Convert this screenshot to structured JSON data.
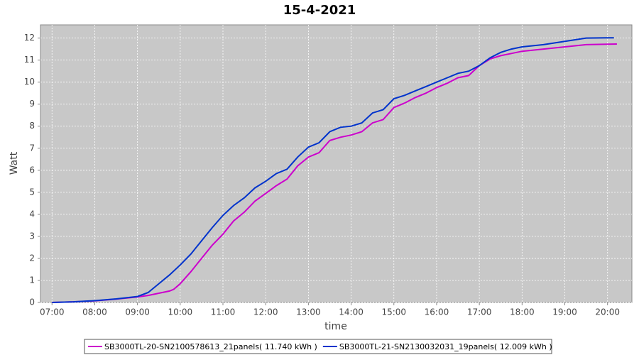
{
  "chart_data": {
    "type": "line",
    "title": "15-4-2021",
    "x_label": "time",
    "y_label": "Watt",
    "xlim": [
      6.73,
      20.57
    ],
    "xticks": [
      {
        "value": 7,
        "label": "07:00"
      },
      {
        "value": 8,
        "label": "08:00"
      },
      {
        "value": 9,
        "label": "09:00"
      },
      {
        "value": 10,
        "label": "10:00"
      },
      {
        "value": 11,
        "label": "11:00"
      },
      {
        "value": 12,
        "label": "12:00"
      },
      {
        "value": 13,
        "label": "13:00"
      },
      {
        "value": 14,
        "label": "14:00"
      },
      {
        "value": 15,
        "label": "15:00"
      },
      {
        "value": 16,
        "label": "16:00"
      },
      {
        "value": 17,
        "label": "17:00"
      },
      {
        "value": 18,
        "label": "18:00"
      },
      {
        "value": 19,
        "label": "19:00"
      },
      {
        "value": 20,
        "label": "20:00"
      }
    ],
    "ylim": [
      0,
      12.6
    ],
    "yticks": [
      0,
      1,
      2,
      3,
      4,
      5,
      6,
      7,
      8,
      9,
      10,
      11,
      12
    ],
    "grid": true,
    "series": [
      {
        "name": "SB3000TL-20-SN2100578613_21panels( 11.740 kWh )",
        "color": "#cc00cc",
        "x": [
          7,
          7.5,
          8,
          8.5,
          9,
          9.25,
          9.5,
          9.75,
          9.85,
          10,
          10.25,
          10.5,
          10.75,
          11,
          11.25,
          11.5,
          11.75,
          12,
          12.25,
          12.5,
          12.75,
          13,
          13.25,
          13.5,
          13.75,
          14,
          14.25,
          14.5,
          14.75,
          15,
          15.25,
          15.5,
          15.75,
          16,
          16.25,
          16.5,
          16.75,
          17,
          17.25,
          17.5,
          17.75,
          18,
          18.5,
          19,
          19.5,
          20,
          20.22
        ],
        "values": [
          0,
          0.03,
          0.07,
          0.15,
          0.25,
          0.32,
          0.42,
          0.52,
          0.6,
          0.85,
          1.4,
          2.0,
          2.6,
          3.1,
          3.7,
          4.1,
          4.6,
          4.95,
          5.3,
          5.6,
          6.2,
          6.6,
          6.8,
          7.35,
          7.5,
          7.6,
          7.75,
          8.15,
          8.3,
          8.85,
          9.05,
          9.3,
          9.5,
          9.75,
          9.95,
          10.2,
          10.3,
          10.75,
          11.05,
          11.2,
          11.3,
          11.4,
          11.5,
          11.6,
          11.7,
          11.72,
          11.73
        ]
      },
      {
        "name": "SB3000TL-21-SN2130032031_19panels( 12.009 kWh )",
        "color": "#0033cc",
        "x": [
          7,
          7.5,
          8,
          8.5,
          9,
          9.25,
          9.5,
          9.75,
          10,
          10.25,
          10.5,
          10.75,
          11,
          11.25,
          11.5,
          11.75,
          12,
          12.25,
          12.5,
          12.75,
          13,
          13.25,
          13.5,
          13.75,
          14,
          14.25,
          14.5,
          14.75,
          15,
          15.25,
          15.5,
          15.75,
          16,
          16.25,
          16.5,
          16.75,
          17,
          17.25,
          17.5,
          17.75,
          18,
          18.5,
          19,
          19.5,
          20,
          20.15
        ],
        "values": [
          0,
          0.03,
          0.08,
          0.16,
          0.27,
          0.45,
          0.85,
          1.25,
          1.7,
          2.2,
          2.8,
          3.4,
          3.95,
          4.4,
          4.75,
          5.2,
          5.5,
          5.85,
          6.05,
          6.6,
          7.05,
          7.25,
          7.75,
          7.95,
          8.0,
          8.15,
          8.6,
          8.75,
          9.25,
          9.4,
          9.6,
          9.8,
          10.0,
          10.2,
          10.4,
          10.5,
          10.75,
          11.1,
          11.35,
          11.5,
          11.6,
          11.7,
          11.85,
          12.0,
          12.01,
          12.01
        ]
      }
    ]
  }
}
